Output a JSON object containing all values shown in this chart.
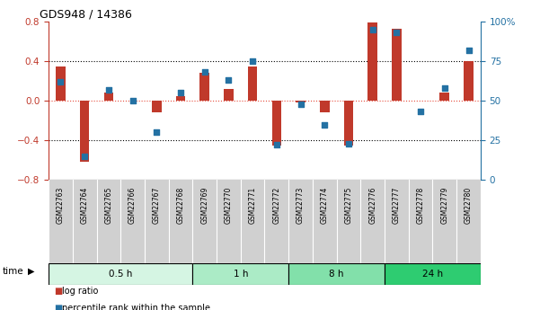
{
  "title": "GDS948 / 14386",
  "samples": [
    "GSM22763",
    "GSM22764",
    "GSM22765",
    "GSM22766",
    "GSM22767",
    "GSM22768",
    "GSM22769",
    "GSM22770",
    "GSM22771",
    "GSM22772",
    "GSM22773",
    "GSM22774",
    "GSM22775",
    "GSM22776",
    "GSM22777",
    "GSM22778",
    "GSM22779",
    "GSM22780"
  ],
  "log_ratio": [
    0.35,
    -0.62,
    0.08,
    0.0,
    -0.12,
    0.05,
    0.28,
    0.12,
    0.35,
    -0.45,
    -0.02,
    -0.12,
    -0.45,
    0.79,
    0.73,
    0.0,
    0.08,
    0.4
  ],
  "percentile": [
    62,
    15,
    57,
    50,
    30,
    55,
    68,
    63,
    75,
    22,
    48,
    35,
    23,
    95,
    93,
    43,
    58,
    82
  ],
  "bar_color": "#c0392b",
  "dot_color": "#2471a3",
  "bg_color": "#ffffff",
  "zero_line_color": "#e74c3c",
  "ylim_left": [
    -0.8,
    0.8
  ],
  "ylim_right": [
    0,
    100
  ],
  "yticks_left": [
    -0.8,
    -0.4,
    0.0,
    0.4,
    0.8
  ],
  "yticks_right": [
    0,
    25,
    50,
    75,
    100
  ],
  "ytick_labels_right": [
    "0",
    "25",
    "50",
    "75",
    "100%"
  ],
  "dotted_lines": [
    -0.4,
    0.4
  ],
  "groups": [
    {
      "label": "0.5 h",
      "start": 0,
      "end": 6,
      "color": "#d5f5e3"
    },
    {
      "label": "1 h",
      "start": 6,
      "end": 10,
      "color": "#abebc6"
    },
    {
      "label": "8 h",
      "start": 10,
      "end": 14,
      "color": "#82e0aa"
    },
    {
      "label": "24 h",
      "start": 14,
      "end": 18,
      "color": "#2ecc71"
    }
  ],
  "time_label": "time",
  "legend_items": [
    {
      "label": "log ratio",
      "color": "#c0392b"
    },
    {
      "label": "percentile rank within the sample",
      "color": "#2471a3"
    }
  ]
}
